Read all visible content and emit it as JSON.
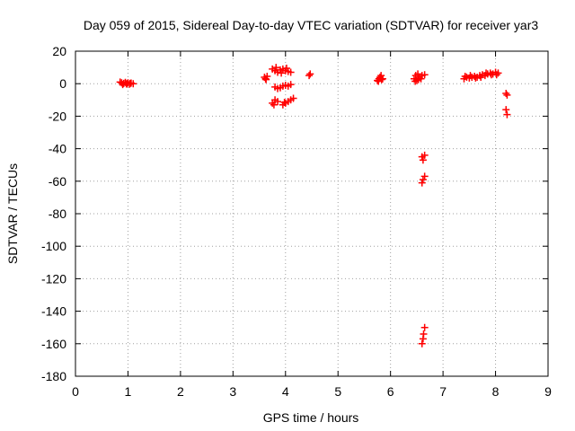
{
  "chart_data": {
    "type": "scatter",
    "title": "Day 059 of 2015, Sidereal Day-to-day VTEC variation (SDTVAR) for receiver yar3",
    "xlabel": "GPS time / hours",
    "ylabel": "SDTVAR / TECUs",
    "xlim": [
      0,
      9
    ],
    "ylim": [
      -180,
      20
    ],
    "xticks": [
      0,
      1,
      2,
      3,
      4,
      5,
      6,
      7,
      8,
      9
    ],
    "yticks": [
      20,
      0,
      -20,
      -40,
      -60,
      -80,
      -100,
      -120,
      -140,
      -160,
      -180
    ],
    "grid": true,
    "marker": "+",
    "color": "#ff0000",
    "series": [
      {
        "name": "SDTVAR",
        "points": [
          [
            0.85,
            1
          ],
          [
            0.88,
            0.5
          ],
          [
            0.92,
            0.2
          ],
          [
            0.95,
            0.8
          ],
          [
            0.98,
            0
          ],
          [
            1.0,
            0.5
          ],
          [
            1.03,
            -0.3
          ],
          [
            1.06,
            0.4
          ],
          [
            1.1,
            0
          ],
          [
            0.9,
            -0.5
          ],
          [
            0.97,
            -0.2
          ],
          [
            1.04,
            0.2
          ],
          [
            3.6,
            4
          ],
          [
            3.62,
            3
          ],
          [
            3.65,
            4.5
          ],
          [
            3.63,
            2.5
          ],
          [
            3.75,
            9
          ],
          [
            3.8,
            8
          ],
          [
            3.85,
            7
          ],
          [
            3.9,
            8.5
          ],
          [
            3.95,
            9
          ],
          [
            4.0,
            8
          ],
          [
            4.05,
            7.5
          ],
          [
            4.1,
            7
          ],
          [
            3.82,
            10
          ],
          [
            3.92,
            6.5
          ],
          [
            4.02,
            9.5
          ],
          [
            3.8,
            -2
          ],
          [
            3.85,
            -3
          ],
          [
            3.9,
            -2.5
          ],
          [
            3.95,
            -1.5
          ],
          [
            4.0,
            -1
          ],
          [
            4.05,
            -1.5
          ],
          [
            4.1,
            -0.5
          ],
          [
            3.75,
            -12
          ],
          [
            3.8,
            -10
          ],
          [
            3.85,
            -11
          ],
          [
            3.78,
            -13
          ],
          [
            3.95,
            -13
          ],
          [
            4.0,
            -12
          ],
          [
            4.05,
            -11
          ],
          [
            4.1,
            -10
          ],
          [
            4.15,
            -9
          ],
          [
            3.98,
            -11.5
          ],
          [
            4.45,
            5
          ],
          [
            4.47,
            6
          ],
          [
            5.75,
            2
          ],
          [
            5.78,
            3
          ],
          [
            5.8,
            4
          ],
          [
            5.82,
            5
          ],
          [
            5.85,
            3
          ],
          [
            5.77,
            1.5
          ],
          [
            5.83,
            2.5
          ],
          [
            6.45,
            3
          ],
          [
            6.48,
            5
          ],
          [
            6.5,
            2
          ],
          [
            6.52,
            6
          ],
          [
            6.55,
            4
          ],
          [
            6.58,
            3
          ],
          [
            6.6,
            5
          ],
          [
            6.65,
            5.5
          ],
          [
            6.47,
            1.5
          ],
          [
            6.53,
            2.5
          ],
          [
            6.6,
            -45
          ],
          [
            6.62,
            -47
          ],
          [
            6.65,
            -44
          ],
          [
            6.6,
            -61
          ],
          [
            6.62,
            -59
          ],
          [
            6.65,
            -57
          ],
          [
            6.6,
            -160
          ],
          [
            6.62,
            -157
          ],
          [
            6.63,
            -154
          ],
          [
            6.65,
            -150
          ],
          [
            7.4,
            3
          ],
          [
            7.45,
            4
          ],
          [
            7.5,
            3.5
          ],
          [
            7.55,
            4
          ],
          [
            7.6,
            4.5
          ],
          [
            7.65,
            4
          ],
          [
            7.7,
            5
          ],
          [
            7.75,
            5.5
          ],
          [
            7.8,
            5
          ],
          [
            7.85,
            6
          ],
          [
            7.9,
            6.5
          ],
          [
            7.95,
            6
          ],
          [
            8.0,
            7
          ],
          [
            8.05,
            6.5
          ],
          [
            7.42,
            4.5
          ],
          [
            7.52,
            5
          ],
          [
            7.62,
            3.5
          ],
          [
            7.72,
            4
          ],
          [
            7.82,
            6.5
          ],
          [
            7.92,
            5.5
          ],
          [
            8.02,
            5.5
          ],
          [
            8.2,
            -6
          ],
          [
            8.22,
            -7
          ],
          [
            8.2,
            -16
          ],
          [
            8.22,
            -19
          ]
        ]
      }
    ]
  }
}
